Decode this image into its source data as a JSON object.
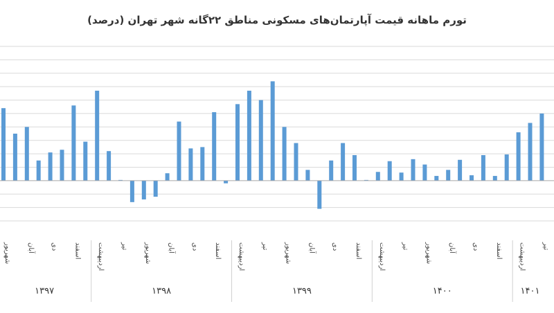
{
  "chart_data": {
    "type": "bar",
    "title": "تورم ماهانه قیمت آپارتمان‌های مسکونی مناطق ۲۲گانه شهر تهران (درصد)",
    "xlabel": "",
    "ylabel": "",
    "ylim": [
      -3,
      10
    ],
    "grid": true,
    "legend": "none",
    "bar_color": "#5b9bd5",
    "grid_color": "#d9d9d9",
    "values": [
      5.4,
      3.5,
      4.0,
      1.5,
      2.1,
      2.3,
      5.6,
      2.9,
      6.7,
      2.2,
      0.05,
      -1.6,
      -1.4,
      -1.2,
      0.55,
      4.4,
      2.4,
      2.5,
      5.1,
      -0.2,
      5.7,
      6.7,
      6.0,
      7.4,
      4.0,
      2.8,
      0.8,
      -2.1,
      1.5,
      2.8,
      1.9,
      0.05,
      0.65,
      1.45,
      0.6,
      1.6,
      1.2,
      0.35,
      0.8,
      1.55,
      0.4,
      1.9,
      0.35,
      1.95,
      3.6,
      4.3,
      5.0
    ],
    "tick_labels": [
      {
        "label": "شهریور",
        "bar": 0
      },
      {
        "label": "آبان",
        "bar": 2
      },
      {
        "label": "دی",
        "bar": 4
      },
      {
        "label": "اسفند",
        "bar": 6
      },
      {
        "label": "اردیبهشت",
        "bar": 8
      },
      {
        "label": "تیر",
        "bar": 10
      },
      {
        "label": "شهریور",
        "bar": 12
      },
      {
        "label": "آبان",
        "bar": 14
      },
      {
        "label": "دی",
        "bar": 16
      },
      {
        "label": "اسفند",
        "bar": 18
      },
      {
        "label": "اردیبهشت",
        "bar": 20
      },
      {
        "label": "تیر",
        "bar": 22
      },
      {
        "label": "شهریور",
        "bar": 24
      },
      {
        "label": "آبان",
        "bar": 26
      },
      {
        "label": "دی",
        "bar": 28
      },
      {
        "label": "اسفند",
        "bar": 30
      },
      {
        "label": "اردیبهشت",
        "bar": 32
      },
      {
        "label": "تیر",
        "bar": 34
      },
      {
        "label": "شهریور",
        "bar": 36
      },
      {
        "label": "آبان",
        "bar": 38
      },
      {
        "label": "دی",
        "bar": 40
      },
      {
        "label": "اسفند",
        "bar": 42
      },
      {
        "label": "اردیبهشت",
        "bar": 44
      },
      {
        "label": "تیر",
        "bar": 46
      }
    ],
    "years": [
      {
        "label": "۱۳۹۷",
        "first_bar": 0,
        "last_bar": 7
      },
      {
        "label": "۱۳۹۸",
        "first_bar": 8,
        "last_bar": 19
      },
      {
        "label": "۱۳۹۹",
        "first_bar": 20,
        "last_bar": 31
      },
      {
        "label": "۱۴۰۰",
        "first_bar": 32,
        "last_bar": 43
      },
      {
        "label": "۱۴۰۱",
        "first_bar": 44,
        "last_bar": 46
      }
    ]
  }
}
